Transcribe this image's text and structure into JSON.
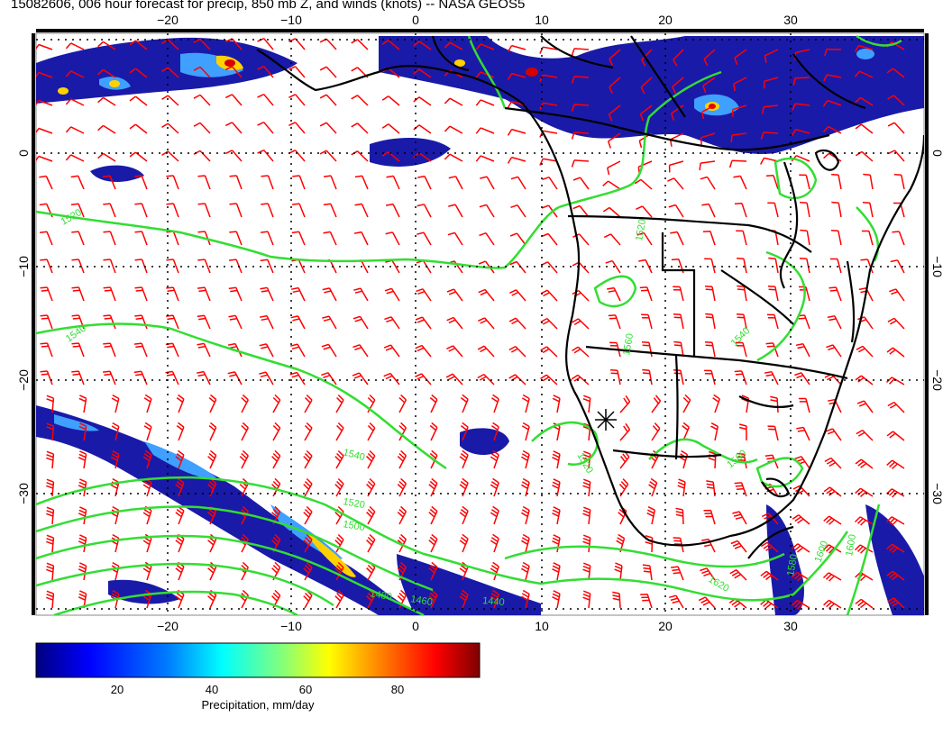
{
  "title": "15082606, 006 hour forecast for precip, 850 mb Z, and winds (knots) -- NASA GEOS5",
  "axes": {
    "x_ticks": [
      "−20",
      "−10",
      "0",
      "10",
      "20",
      "30"
    ],
    "y_ticks": [
      "0",
      "−10",
      "−20",
      "−30"
    ]
  },
  "contour_labels": [
    "1520",
    "1540",
    "1540",
    "1520",
    "1500",
    "1520",
    "1540",
    "1520",
    "1560",
    "1580",
    "1600",
    "1620",
    "1480",
    "1460",
    "1440",
    "1560",
    "1600"
  ],
  "colorbar": {
    "ticks": [
      "20",
      "40",
      "60",
      "80"
    ],
    "label": "Precipitation, mm/day",
    "colors": [
      "#00007f",
      "#0000ff",
      "#007fff",
      "#00ffff",
      "#7fff7f",
      "#ffff00",
      "#ff7f00",
      "#ff0000",
      "#7f0000"
    ],
    "range": [
      0,
      100
    ]
  },
  "colors": {
    "wind_barbs": "#ff0000",
    "contours": "#33dd33",
    "coastline": "#000000"
  },
  "map": {
    "lon_range": [
      -30,
      40
    ],
    "lat_range": [
      -40,
      10
    ],
    "grid": true
  }
}
